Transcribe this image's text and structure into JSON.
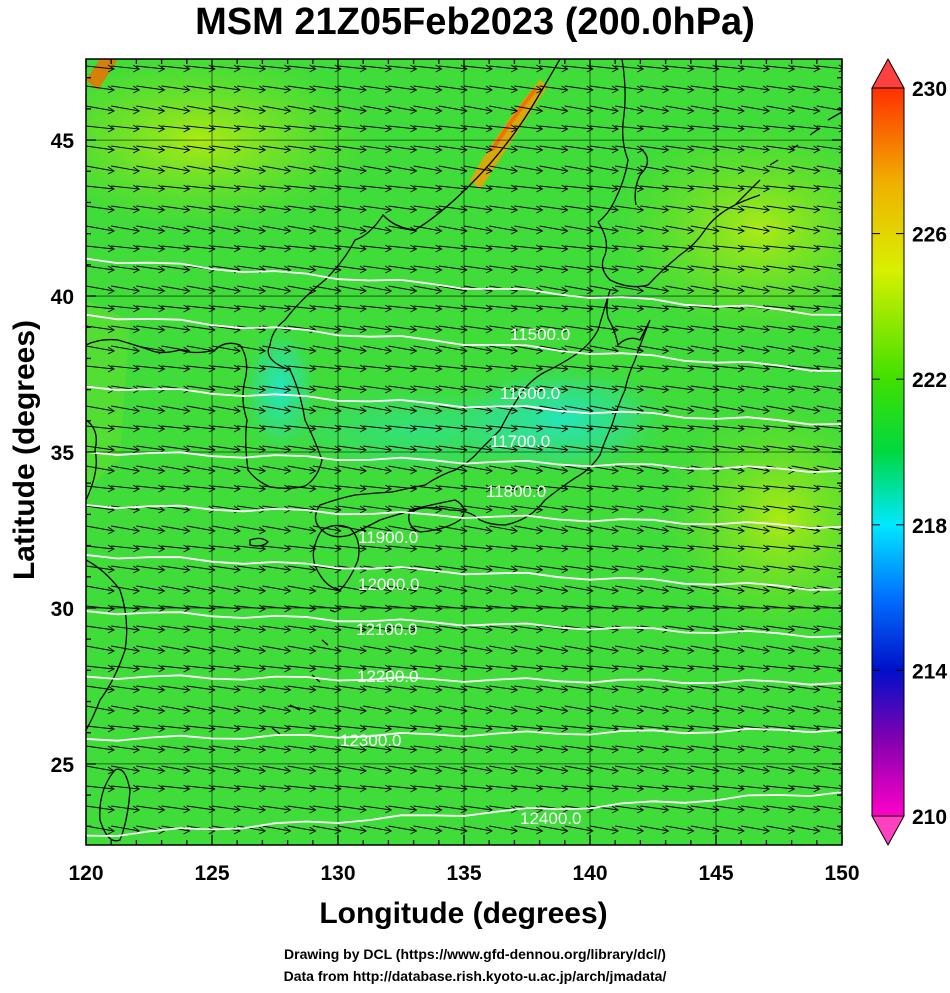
{
  "title": "MSM 21Z05Feb2023 (200.0hPa)",
  "xlabel": "Longitude (degrees)",
  "ylabel": "Latitude  (degrees)",
  "footer_lines": [
    "Drawing by DCL (https://www.gfd-dennou.org/library/dcl/)",
    "Data from http://database.rish.kyoto-u.ac.jp/arch/jmadata/"
  ],
  "map_data": {
    "type": "contour-map",
    "xlim": [
      120,
      150
    ],
    "ylim": [
      22.4,
      47.6
    ],
    "x_ticks": [
      120,
      125,
      130,
      135,
      140,
      145,
      150
    ],
    "x_tick_labels": [
      "120",
      "125",
      "130",
      "135",
      "140",
      "145",
      "150"
    ],
    "y_ticks": [
      25,
      30,
      35,
      40,
      45
    ],
    "y_tick_labels": [
      "25",
      "30",
      "35",
      "40",
      "45"
    ],
    "colorbar": {
      "min": 210,
      "max": 230,
      "tick_values": [
        210,
        214,
        218,
        222,
        226,
        230
      ],
      "tick_labels": [
        "210",
        "214",
        "218",
        "222",
        "226",
        "230"
      ],
      "colors": [
        "#ff00c8",
        "#8800b0",
        "#0010c8",
        "#0070ff",
        "#00e8ff",
        "#00d840",
        "#40e000",
        "#d8f000",
        "#f0b000",
        "#ff3000"
      ]
    },
    "background_color": "#3fdc3a",
    "contours": [
      {
        "label": "11500.0",
        "lat_west": 41.2,
        "lat_east": 39.4
      },
      {
        "label": "11600.0",
        "lat_west": 39.4,
        "lat_east": 37.6
      },
      {
        "label": "11700.0",
        "lat_west": 37.1,
        "lat_east": 35.9
      },
      {
        "label": "11800.0",
        "lat_west": 35.0,
        "lat_east": 34.4
      },
      {
        "label": "11900.0",
        "lat_west": 33.3,
        "lat_east": 32.6
      },
      {
        "label": "12000.0",
        "lat_west": 31.7,
        "lat_east": 30.6
      },
      {
        "label": "12100.0",
        "lat_west": 29.9,
        "lat_east": 29.1
      },
      {
        "label": "12200.0",
        "lat_west": 27.8,
        "lat_east": 27.6
      },
      {
        "label": "12300.0",
        "lat_west": 25.8,
        "lat_east": 26.1
      },
      {
        "label": "12400.0",
        "lat_west": 22.7,
        "lat_east": 24.1
      }
    ]
  }
}
